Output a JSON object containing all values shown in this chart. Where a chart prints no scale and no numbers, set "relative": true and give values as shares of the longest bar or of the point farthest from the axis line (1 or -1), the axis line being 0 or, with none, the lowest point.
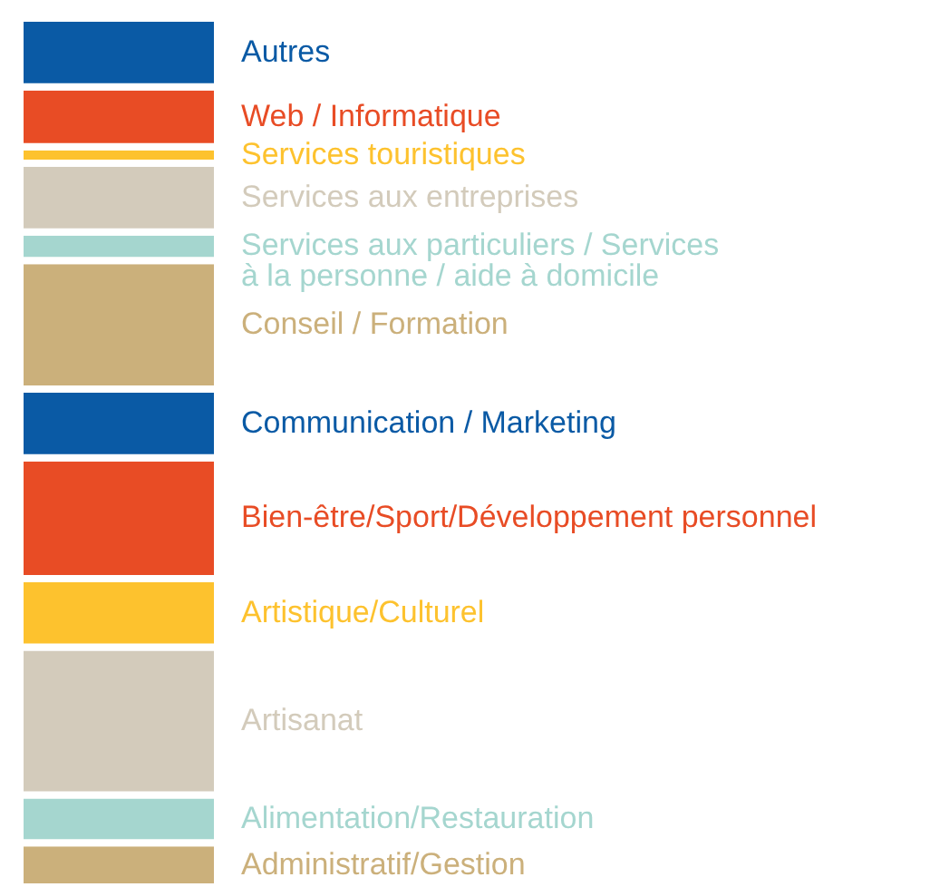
{
  "chart_data": {
    "type": "bar",
    "stacked": true,
    "relative": true,
    "categories": [
      null
    ],
    "series": [
      {
        "name": "Administratif/Gestion",
        "color": "#cbb07b",
        "values": [
          0.051
        ]
      },
      {
        "name": "Alimentation/Restauration",
        "color": "#a5d6cf",
        "values": [
          0.055
        ]
      },
      {
        "name": "Artisanat",
        "color": "#d3cbbb",
        "values": [
          0.17
        ]
      },
      {
        "name": "Artistique/Culturel",
        "color": "#fdc22e",
        "values": [
          0.079
        ]
      },
      {
        "name": "Bien-être/Sport/Développement personnel",
        "color": "#e84c25",
        "values": [
          0.139
        ]
      },
      {
        "name": "Communication / Marketing",
        "color": "#0a5aa5",
        "values": [
          0.079
        ]
      },
      {
        "name": "Conseil / Formation",
        "color": "#cbb07b",
        "values": [
          0.148
        ]
      },
      {
        "name": "Services aux particuliers / Services à la personne / aide à domicile",
        "color": "#a5d6cf",
        "values": [
          0.033
        ]
      },
      {
        "name": "Services aux entreprises",
        "color": "#d3cbbb",
        "values": [
          0.079
        ]
      },
      {
        "name": "Services touristiques",
        "color": "#fdc22e",
        "values": [
          0.019
        ]
      },
      {
        "name": "Web / Informatique",
        "color": "#e84c25",
        "values": [
          0.069
        ]
      },
      {
        "name": "Autres",
        "color": "#0a5aa5",
        "values": [
          0.079
        ]
      }
    ]
  }
}
